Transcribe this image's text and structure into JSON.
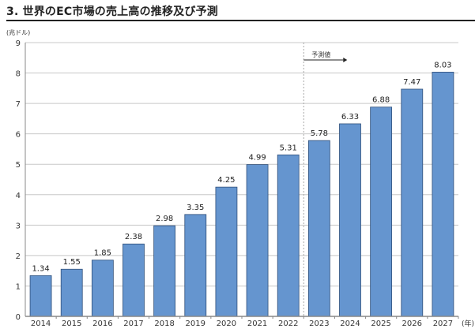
{
  "header": {
    "title": "3. 世界のEC市場の売上高の推移及び予測"
  },
  "chart_data": {
    "type": "bar",
    "title": "",
    "ylabel": "(兆ドル)",
    "xlabel": "(年)",
    "categories": [
      "2014",
      "2015",
      "2016",
      "2017",
      "2018",
      "2019",
      "2020",
      "2021",
      "2022",
      "2023",
      "2024",
      "2025",
      "2026",
      "2027"
    ],
    "values": [
      1.34,
      1.55,
      1.85,
      2.38,
      2.98,
      3.35,
      4.25,
      4.99,
      5.31,
      5.78,
      6.33,
      6.88,
      7.47,
      8.03
    ],
    "ylim": [
      0,
      9
    ],
    "yticks": [
      0,
      1,
      2,
      3,
      4,
      5,
      6,
      7,
      8,
      9
    ],
    "grid": true,
    "bar_color": "#6595cf",
    "forecast_label": "予測値",
    "forecast_start": "2023"
  }
}
